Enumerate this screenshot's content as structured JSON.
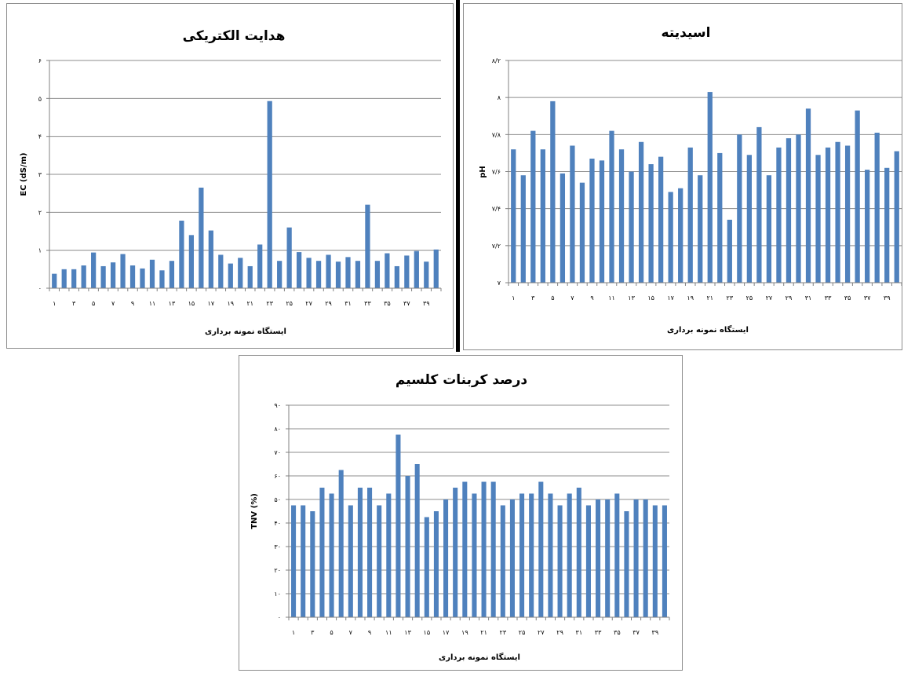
{
  "colors": {
    "bar": "#4f81bd",
    "grid": "#8c8c8c",
    "axis": "#808080",
    "text": "#000000"
  },
  "chart_data": [
    {
      "type": "bar",
      "title": "هدایت الکتریکی",
      "xlabel": "ایستگاه نمونه برداری",
      "ylabel": "EC (dS/m)",
      "ylim": [
        0,
        6
      ],
      "yticks": [
        0,
        1,
        2,
        3,
        4,
        5,
        6
      ],
      "ytick_labels": [
        "۰",
        "۱",
        "۲",
        "۳",
        "۴",
        "۵",
        "۶"
      ],
      "grid": true,
      "categories": [
        "1",
        "2",
        "3",
        "4",
        "5",
        "6",
        "7",
        "8",
        "9",
        "10",
        "11",
        "12",
        "13",
        "14",
        "15",
        "16",
        "17",
        "18",
        "19",
        "20",
        "21",
        "22",
        "23",
        "24",
        "25",
        "26",
        "27",
        "28",
        "29",
        "30",
        "31",
        "32",
        "33",
        "34",
        "35",
        "36",
        "37",
        "38",
        "39",
        "40"
      ],
      "xtick_labels": [
        "۱",
        "",
        "۳",
        "",
        "۵",
        "",
        "۷",
        "",
        "۹",
        "",
        "۱۱",
        "",
        "۱۳",
        "",
        "۱۵",
        "",
        "۱۷",
        "",
        "۱۹",
        "",
        "۲۱",
        "",
        "۲۳",
        "",
        "۲۵",
        "",
        "۲۷",
        "",
        "۲۹",
        "",
        "۳۱",
        "",
        "۳۳",
        "",
        "۳۵",
        "",
        "۳۷",
        "",
        "۳۹",
        ""
      ],
      "values": [
        0.38,
        0.5,
        0.5,
        0.6,
        0.94,
        0.58,
        0.68,
        0.9,
        0.6,
        0.52,
        0.75,
        0.47,
        0.72,
        1.78,
        1.4,
        2.65,
        1.52,
        0.88,
        0.65,
        0.8,
        0.58,
        1.15,
        4.93,
        0.72,
        1.6,
        0.95,
        0.8,
        0.72,
        0.88,
        0.7,
        0.82,
        0.72,
        2.2,
        0.72,
        0.92,
        0.58,
        0.86,
        0.98,
        0.7,
        1.02
      ]
    },
    {
      "type": "bar",
      "title": "اسیدیته",
      "xlabel": "ایستگاه نمونه برداری",
      "ylabel": "pH",
      "ylim": [
        7,
        8.2
      ],
      "yticks": [
        7,
        7.2,
        7.4,
        7.6,
        7.8,
        8,
        8.2
      ],
      "ytick_labels": [
        "۷",
        "۷/۲",
        "۷/۴",
        "۷/۶",
        "۷/۸",
        "۸",
        "۸/۲"
      ],
      "grid": true,
      "categories": [
        "1",
        "2",
        "3",
        "4",
        "5",
        "6",
        "7",
        "8",
        "9",
        "10",
        "11",
        "12",
        "13",
        "14",
        "15",
        "16",
        "17",
        "18",
        "19",
        "20",
        "21",
        "22",
        "23",
        "24",
        "25",
        "26",
        "27",
        "28",
        "29",
        "30",
        "31",
        "32",
        "33",
        "34",
        "35",
        "36",
        "37",
        "38",
        "39",
        "40"
      ],
      "xtick_labels": [
        "۱",
        "",
        "۳",
        "",
        "۵",
        "",
        "۷",
        "",
        "۹",
        "",
        "۱۱",
        "",
        "۱۳",
        "",
        "۱۵",
        "",
        "۱۷",
        "",
        "۱۹",
        "",
        "۲۱",
        "",
        "۲۳",
        "",
        "۲۵",
        "",
        "۲۷",
        "",
        "۲۹",
        "",
        "۳۱",
        "",
        "۳۳",
        "",
        "۳۵",
        "",
        "۳۷",
        "",
        "۳۹",
        ""
      ],
      "values": [
        7.72,
        7.58,
        7.82,
        7.72,
        7.98,
        7.59,
        7.74,
        7.54,
        7.67,
        7.66,
        7.82,
        7.72,
        7.6,
        7.76,
        7.64,
        7.68,
        7.49,
        7.51,
        7.73,
        7.58,
        8.03,
        7.7,
        7.34,
        7.8,
        7.69,
        7.84,
        7.58,
        7.73,
        7.78,
        7.8,
        7.94,
        7.69,
        7.73,
        7.76,
        7.74,
        7.93,
        7.61,
        7.81,
        7.62,
        7.71
      ]
    },
    {
      "type": "bar",
      "title": "درصد کربنات کلسیم",
      "xlabel": "ایستگاه نمونه برداری",
      "ylabel": "TNV (%)",
      "ylim": [
        0,
        90
      ],
      "yticks": [
        0,
        10,
        20,
        30,
        40,
        50,
        60,
        70,
        80,
        90
      ],
      "ytick_labels": [
        "۰",
        "۱۰",
        "۲۰",
        "۳۰",
        "۴۰",
        "۵۰",
        "۶۰",
        "۷۰",
        "۸۰",
        "۹۰"
      ],
      "grid": true,
      "categories": [
        "1",
        "2",
        "3",
        "4",
        "5",
        "6",
        "7",
        "8",
        "9",
        "10",
        "11",
        "12",
        "13",
        "14",
        "15",
        "16",
        "17",
        "18",
        "19",
        "20",
        "21",
        "22",
        "23",
        "24",
        "25",
        "26",
        "27",
        "28",
        "29",
        "30",
        "31",
        "32",
        "33",
        "34",
        "35",
        "36",
        "37",
        "38",
        "39",
        "40"
      ],
      "xtick_labels": [
        "۱",
        "",
        "۳",
        "",
        "۵",
        "",
        "۷",
        "",
        "۹",
        "",
        "۱۱",
        "",
        "۱۳",
        "",
        "۱۵",
        "",
        "۱۷",
        "",
        "۱۹",
        "",
        "۲۱",
        "",
        "۲۳",
        "",
        "۲۵",
        "",
        "۲۷",
        "",
        "۲۹",
        "",
        "۳۱",
        "",
        "۳۳",
        "",
        "۳۵",
        "",
        "۳۷",
        "",
        "۳۹",
        ""
      ],
      "values": [
        47.5,
        47.5,
        45,
        55,
        52.5,
        62.5,
        47.5,
        55,
        55,
        47.5,
        52.5,
        77.5,
        60,
        65,
        42.5,
        45,
        50,
        55,
        57.5,
        52.5,
        57.5,
        57.5,
        47.5,
        50,
        52.5,
        52.5,
        57.5,
        52.5,
        47.5,
        52.5,
        55,
        47.5,
        50,
        50,
        52.5,
        45,
        50,
        50,
        47.5,
        47.5
      ]
    }
  ]
}
